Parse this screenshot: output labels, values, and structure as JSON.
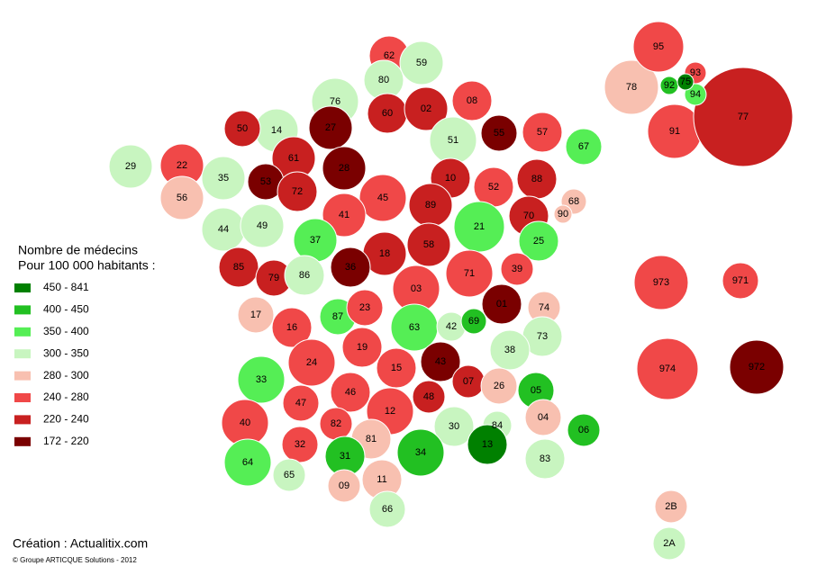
{
  "legend": {
    "title": [
      "Nombre de médecins",
      "Pour 100 000 habitants :"
    ],
    "classes": [
      {
        "label": "450 - 841",
        "color": "#008000"
      },
      {
        "label": "400 - 450",
        "color": "#22c022"
      },
      {
        "label": "350 - 400",
        "color": "#55ee55"
      },
      {
        "label": "300 - 350",
        "color": "#c8f5c0"
      },
      {
        "label": "280 - 300",
        "color": "#f8c0b0"
      },
      {
        "label": "240 - 280",
        "color": "#f04848"
      },
      {
        "label": "220 - 240",
        "color": "#c82020"
      },
      {
        "label": "172 - 220",
        "color": "#7a0000"
      }
    ]
  },
  "departments": [
    {
      "code": "62",
      "class": 5
    },
    {
      "code": "59",
      "class": 3
    },
    {
      "code": "80",
      "class": 3
    },
    {
      "code": "76",
      "class": 3
    },
    {
      "code": "60",
      "class": 6
    },
    {
      "code": "02",
      "class": 6
    },
    {
      "code": "08",
      "class": 5
    },
    {
      "code": "14",
      "class": 3
    },
    {
      "code": "27",
      "class": 7
    },
    {
      "code": "50",
      "class": 6
    },
    {
      "code": "51",
      "class": 3
    },
    {
      "code": "55",
      "class": 7
    },
    {
      "code": "57",
      "class": 5
    },
    {
      "code": "67",
      "class": 2
    },
    {
      "code": "61",
      "class": 6
    },
    {
      "code": "28",
      "class": 7
    },
    {
      "code": "22",
      "class": 5
    },
    {
      "code": "29",
      "class": 3
    },
    {
      "code": "35",
      "class": 3
    },
    {
      "code": "53",
      "class": 7
    },
    {
      "code": "72",
      "class": 6
    },
    {
      "code": "56",
      "class": 4
    },
    {
      "code": "45",
      "class": 5
    },
    {
      "code": "10",
      "class": 6
    },
    {
      "code": "52",
      "class": 5
    },
    {
      "code": "88",
      "class": 6
    },
    {
      "code": "68",
      "class": 4
    },
    {
      "code": "90",
      "class": 4
    },
    {
      "code": "41",
      "class": 5
    },
    {
      "code": "89",
      "class": 6
    },
    {
      "code": "70",
      "class": 6
    },
    {
      "code": "44",
      "class": 3
    },
    {
      "code": "49",
      "class": 3
    },
    {
      "code": "37",
      "class": 2
    },
    {
      "code": "21",
      "class": 2
    },
    {
      "code": "25",
      "class": 2
    },
    {
      "code": "18",
      "class": 6
    },
    {
      "code": "58",
      "class": 6
    },
    {
      "code": "36",
      "class": 7
    },
    {
      "code": "85",
      "class": 6
    },
    {
      "code": "79",
      "class": 6
    },
    {
      "code": "86",
      "class": 3
    },
    {
      "code": "71",
      "class": 5
    },
    {
      "code": "39",
      "class": 5
    },
    {
      "code": "03",
      "class": 5
    },
    {
      "code": "01",
      "class": 7
    },
    {
      "code": "74",
      "class": 4
    },
    {
      "code": "17",
      "class": 4
    },
    {
      "code": "87",
      "class": 2
    },
    {
      "code": "23",
      "class": 5
    },
    {
      "code": "16",
      "class": 5
    },
    {
      "code": "63",
      "class": 2
    },
    {
      "code": "42",
      "class": 3
    },
    {
      "code": "69",
      "class": 1
    },
    {
      "code": "73",
      "class": 3
    },
    {
      "code": "38",
      "class": 3
    },
    {
      "code": "19",
      "class": 5
    },
    {
      "code": "24",
      "class": 5
    },
    {
      "code": "15",
      "class": 5
    },
    {
      "code": "43",
      "class": 7
    },
    {
      "code": "07",
      "class": 6
    },
    {
      "code": "33",
      "class": 2
    },
    {
      "code": "46",
      "class": 5
    },
    {
      "code": "48",
      "class": 6
    },
    {
      "code": "26",
      "class": 4
    },
    {
      "code": "05",
      "class": 1
    },
    {
      "code": "12",
      "class": 5
    },
    {
      "code": "47",
      "class": 5
    },
    {
      "code": "40",
      "class": 5
    },
    {
      "code": "82",
      "class": 5
    },
    {
      "code": "81",
      "class": 4
    },
    {
      "code": "30",
      "class": 3
    },
    {
      "code": "84",
      "class": 3
    },
    {
      "code": "04",
      "class": 4
    },
    {
      "code": "06",
      "class": 1
    },
    {
      "code": "32",
      "class": 5
    },
    {
      "code": "31",
      "class": 1
    },
    {
      "code": "34",
      "class": 1
    },
    {
      "code": "13",
      "class": 0
    },
    {
      "code": "83",
      "class": 3
    },
    {
      "code": "64",
      "class": 2
    },
    {
      "code": "65",
      "class": 3
    },
    {
      "code": "09",
      "class": 4
    },
    {
      "code": "11",
      "class": 4
    },
    {
      "code": "66",
      "class": 3
    },
    {
      "code": "78",
      "class": 4
    },
    {
      "code": "91",
      "class": 5
    },
    {
      "code": "77",
      "class": 6
    },
    {
      "code": "95",
      "class": 5
    },
    {
      "code": "93",
      "class": 5
    },
    {
      "code": "94",
      "class": 2
    },
    {
      "code": "92",
      "class": 1
    },
    {
      "code": "75",
      "class": 0
    },
    {
      "code": "973",
      "class": 5
    },
    {
      "code": "971",
      "class": 5
    },
    {
      "code": "974",
      "class": 5
    },
    {
      "code": "972",
      "class": 7
    },
    {
      "code": "2B",
      "class": 4
    },
    {
      "code": "2A",
      "class": 3
    }
  ],
  "credit": "Création : Actualitix.com",
  "copyright": "© Groupe ARTICQUE Solutions - 2012"
}
